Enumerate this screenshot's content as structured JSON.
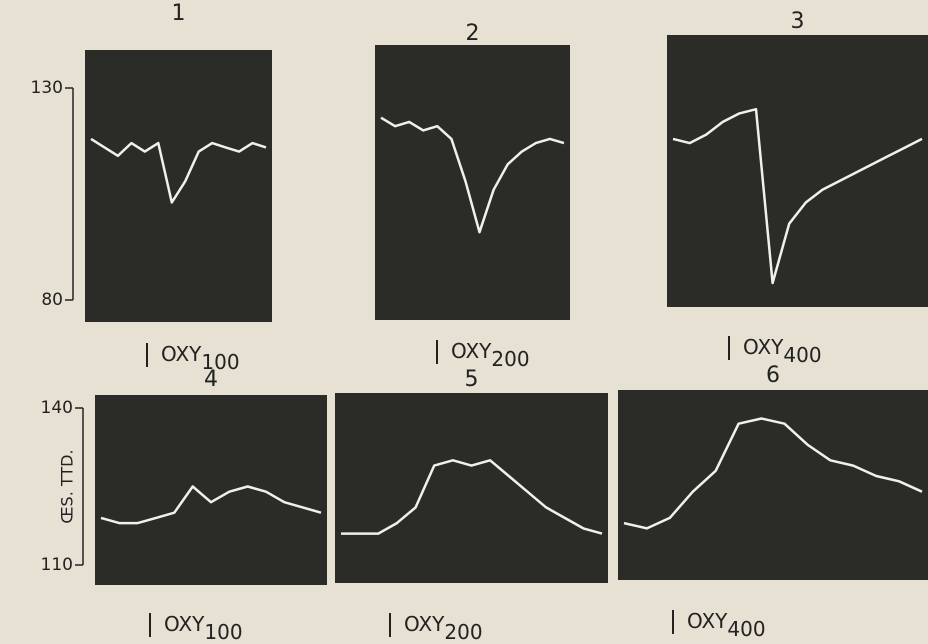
{
  "chart_data": [
    {
      "type": "line",
      "title": "1",
      "ylim": [
        80,
        130
      ],
      "yticks": [
        80,
        130
      ],
      "values": [
        118,
        116,
        114,
        117,
        115,
        117,
        103,
        108,
        115,
        117,
        116,
        115,
        117,
        116
      ],
      "caption": {
        "text": "OXY",
        "dose": "100"
      }
    },
    {
      "type": "line",
      "title": "2",
      "ylim": [
        80,
        130
      ],
      "values": [
        123,
        121,
        122,
        120,
        121,
        118,
        108,
        96,
        106,
        112,
        115,
        117,
        118,
        117
      ],
      "caption": {
        "text": "OXY",
        "dose": "200"
      }
    },
    {
      "type": "line",
      "title": "3",
      "ylim": [
        80,
        130
      ],
      "values": [
        118,
        117,
        119,
        122,
        124,
        125,
        84,
        98,
        103,
        106,
        108,
        110,
        112,
        114,
        116,
        118
      ],
      "caption": {
        "text": "OXY",
        "dose": "400"
      }
    },
    {
      "type": "line",
      "title": "4",
      "ylim": [
        110,
        140
      ],
      "yticks": [
        110,
        140
      ],
      "ylabel": "ŒS. TTD.",
      "values": [
        119,
        118,
        118,
        119,
        120,
        125,
        122,
        124,
        125,
        124,
        122,
        121,
        120
      ],
      "caption": {
        "text": "OXY",
        "dose": "100"
      }
    },
    {
      "type": "line",
      "title": "5",
      "ylim": [
        110,
        140
      ],
      "values": [
        116,
        116,
        116,
        118,
        121,
        129,
        130,
        129,
        130,
        127,
        124,
        121,
        119,
        117,
        116
      ],
      "caption": {
        "text": "OXY",
        "dose": "200"
      }
    },
    {
      "type": "line",
      "title": "6",
      "ylim": [
        110,
        140
      ],
      "values": [
        118,
        117,
        119,
        124,
        128,
        137,
        138,
        137,
        133,
        130,
        129,
        127,
        126,
        124
      ],
      "caption": {
        "text": "OXY",
        "dose": "400"
      }
    }
  ]
}
